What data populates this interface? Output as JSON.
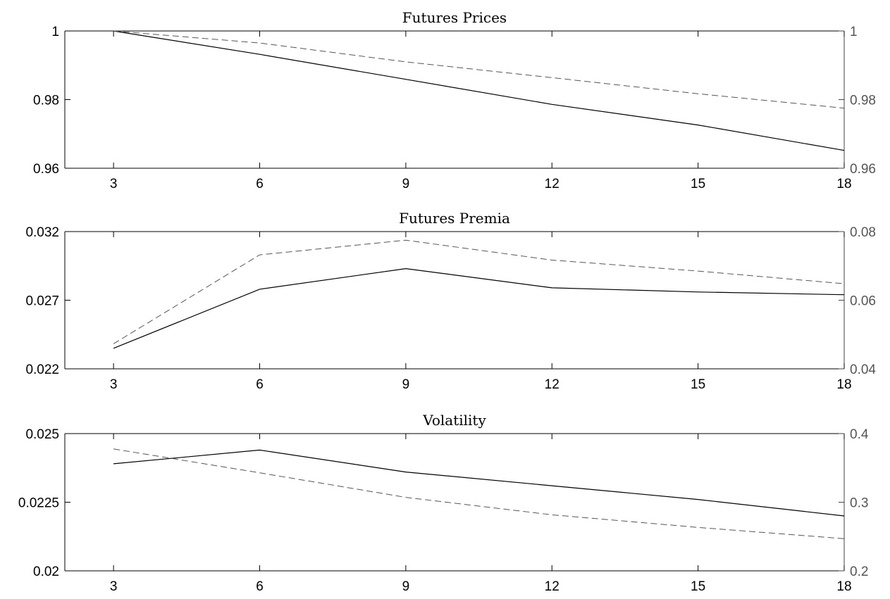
{
  "chart_data": [
    {
      "type": "line",
      "title": "Futures Prices",
      "x": [
        3,
        6,
        9,
        12,
        15,
        18
      ],
      "xticks": [
        "3",
        "6",
        "9",
        "12",
        "15",
        "18"
      ],
      "xlim": [
        2,
        18
      ],
      "left_axis": {
        "ylim": [
          0.96,
          1.0
        ],
        "ticks": [
          0.96,
          0.98,
          1.0
        ],
        "tick_labels": [
          "0.96",
          "0.98",
          "1"
        ]
      },
      "right_axis": {
        "ylim": [
          0.96,
          1.0
        ],
        "ticks": [
          0.96,
          0.98,
          1.0
        ],
        "tick_labels": [
          "0.96",
          "0.98",
          "1"
        ]
      },
      "series": [
        {
          "style": "solid",
          "axis": "left",
          "values": [
            1.0,
            0.9932,
            0.9859,
            0.9786,
            0.9726,
            0.9652
          ]
        },
        {
          "style": "dashed",
          "axis": "right",
          "values": [
            1.0,
            0.9965,
            0.991,
            0.9864,
            0.9817,
            0.9775
          ]
        }
      ]
    },
    {
      "type": "line",
      "title": "Futures Premia",
      "x": [
        3,
        6,
        9,
        12,
        15,
        18
      ],
      "xticks": [
        "3",
        "6",
        "9",
        "12",
        "15",
        "18"
      ],
      "xlim": [
        2,
        18
      ],
      "left_axis": {
        "ylim": [
          0.022,
          0.032
        ],
        "ticks": [
          0.022,
          0.027,
          0.032
        ],
        "tick_labels": [
          "0.022",
          "0.027",
          "0.032"
        ]
      },
      "right_axis": {
        "ylim": [
          0.04,
          0.08
        ],
        "ticks": [
          0.04,
          0.06,
          0.08
        ],
        "tick_labels": [
          "0.04",
          "0.06",
          "0.08"
        ]
      },
      "series": [
        {
          "style": "solid",
          "axis": "left",
          "values": [
            0.0235,
            0.0278,
            0.0293,
            0.0279,
            0.0276,
            0.0274
          ]
        },
        {
          "style": "dashed",
          "axis": "right",
          "values": [
            0.0473,
            0.0732,
            0.0775,
            0.0717,
            0.0685,
            0.0648
          ]
        }
      ]
    },
    {
      "type": "line",
      "title": "Volatility",
      "x": [
        3,
        6,
        9,
        12,
        15,
        18
      ],
      "xticks": [
        "3",
        "6",
        "9",
        "12",
        "15",
        "18"
      ],
      "xlim": [
        2,
        18
      ],
      "left_axis": {
        "ylim": [
          0.02,
          0.025
        ],
        "ticks": [
          0.02,
          0.0225,
          0.025
        ],
        "tick_labels": [
          "0.02",
          "0.0225",
          "0.025"
        ]
      },
      "right_axis": {
        "ylim": [
          0.2,
          0.4
        ],
        "ticks": [
          0.2,
          0.3,
          0.4
        ],
        "tick_labels": [
          "0.2",
          "0.3",
          "0.4"
        ]
      },
      "series": [
        {
          "style": "solid",
          "axis": "left",
          "values": [
            0.0239,
            0.0244,
            0.0236,
            0.0231,
            0.0226,
            0.022
          ]
        },
        {
          "style": "dashed",
          "axis": "right",
          "values": [
            0.3776,
            0.3429,
            0.3071,
            0.2816,
            0.2633,
            0.2469
          ]
        }
      ]
    }
  ]
}
